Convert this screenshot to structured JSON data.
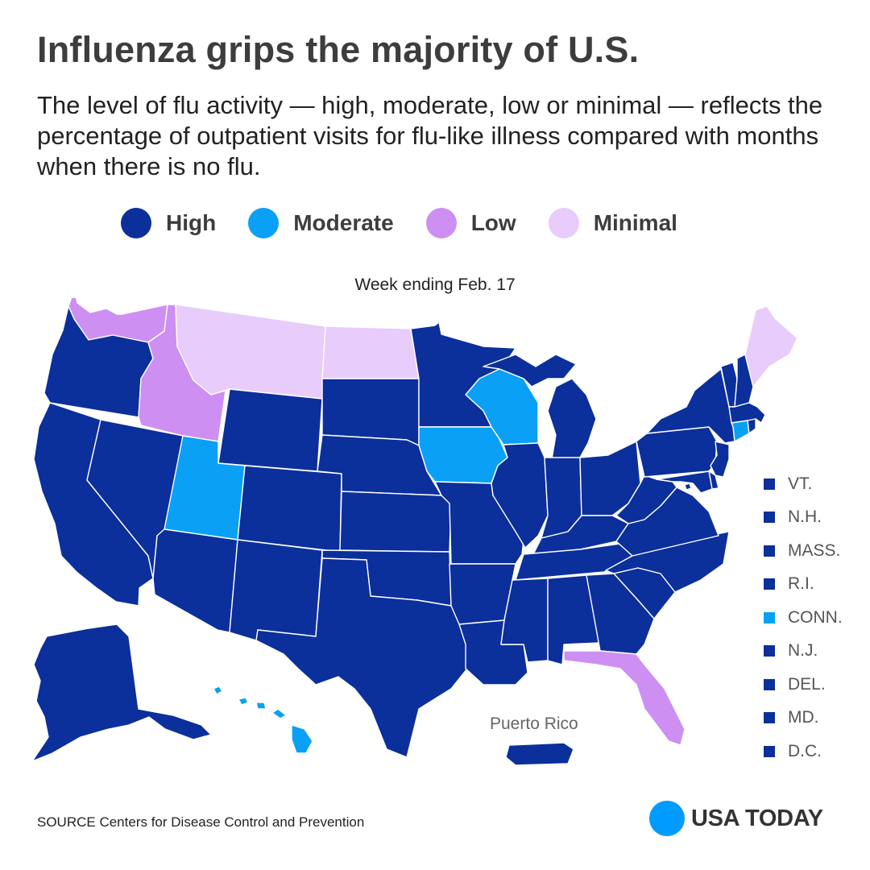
{
  "title": "Influenza grips the majority of U.S.",
  "subtitle": "The level of flu activity — high, moderate, low or minimal — reflects the percentage of outpatient visits for flu-like illness compared with months when there is no flu.",
  "colors": {
    "High": "#0b2f9b",
    "Moderate": "#0aa0f5",
    "Low": "#cd8ff2",
    "Minimal": "#e8ccfb"
  },
  "legend": [
    {
      "label": "High",
      "level": "High"
    },
    {
      "label": "Moderate",
      "level": "Moderate"
    },
    {
      "label": "Low",
      "level": "Low"
    },
    {
      "label": "Minimal",
      "level": "Minimal"
    }
  ],
  "week_label": "Week ending Feb. 17",
  "states": {
    "WA": "Low",
    "OR": "High",
    "CA": "High",
    "NV": "High",
    "ID": "Low",
    "MT": "Minimal",
    "WY": "High",
    "UT": "Moderate",
    "AZ": "High",
    "CO": "High",
    "NM": "High",
    "ND": "Minimal",
    "SD": "High",
    "NE": "High",
    "KS": "High",
    "OK": "High",
    "TX": "High",
    "MN": "High",
    "IA": "Moderate",
    "MO": "High",
    "AR": "High",
    "LA": "High",
    "WI": "Moderate",
    "IL": "High",
    "MI": "High",
    "IN": "High",
    "OH": "High",
    "KY": "High",
    "TN": "High",
    "MS": "High",
    "AL": "High",
    "GA": "High",
    "FL": "Low",
    "SC": "High",
    "NC": "High",
    "VA": "High",
    "WV": "High",
    "PA": "High",
    "NY": "High",
    "ME": "Minimal",
    "VT": "High",
    "NH": "High",
    "MA": "High",
    "RI": "High",
    "CT": "Moderate",
    "NJ": "High",
    "DE": "High",
    "MD": "High",
    "DC": "High",
    "AK": "High",
    "HI": "Moderate",
    "PR": "High"
  },
  "small_states": [
    {
      "label": "VT.",
      "level": "High"
    },
    {
      "label": "N.H.",
      "level": "High"
    },
    {
      "label": "MASS.",
      "level": "High"
    },
    {
      "label": "R.I.",
      "level": "High"
    },
    {
      "label": "CONN.",
      "level": "Moderate"
    },
    {
      "label": "N.J.",
      "level": "High"
    },
    {
      "label": "DEL.",
      "level": "High"
    },
    {
      "label": "MD.",
      "level": "High"
    },
    {
      "label": "D.C.",
      "level": "High"
    }
  ],
  "puerto_rico_label": "Puerto Rico",
  "source": "SOURCE  Centers for Disease Control and Prevention",
  "brand": {
    "name": "USA TODAY",
    "color": "#009bff"
  }
}
